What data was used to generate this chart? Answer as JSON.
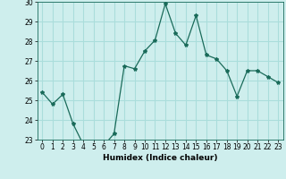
{
  "x": [
    0,
    1,
    2,
    3,
    4,
    5,
    6,
    7,
    8,
    9,
    10,
    11,
    12,
    13,
    14,
    15,
    16,
    17,
    18,
    19,
    20,
    21,
    22,
    23
  ],
  "y": [
    25.4,
    24.8,
    25.3,
    23.8,
    22.75,
    22.7,
    22.7,
    23.3,
    26.75,
    26.6,
    27.5,
    28.05,
    29.9,
    28.4,
    27.8,
    29.3,
    27.3,
    27.1,
    26.5,
    25.2,
    26.5,
    26.5,
    26.2,
    25.9
  ],
  "line_color": "#1a6b5a",
  "marker": "*",
  "marker_size": 3,
  "bg_color": "#ceeeed",
  "grid_color": "#aadddb",
  "xlabel": "Humidex (Indice chaleur)",
  "ylim": [
    23,
    30
  ],
  "xlim": [
    -0.5,
    23.5
  ],
  "yticks": [
    23,
    24,
    25,
    26,
    27,
    28,
    29,
    30
  ],
  "xticks": [
    0,
    1,
    2,
    3,
    4,
    5,
    6,
    7,
    8,
    9,
    10,
    11,
    12,
    13,
    14,
    15,
    16,
    17,
    18,
    19,
    20,
    21,
    22,
    23
  ],
  "label_fontsize": 6.5,
  "tick_fontsize": 5.5
}
